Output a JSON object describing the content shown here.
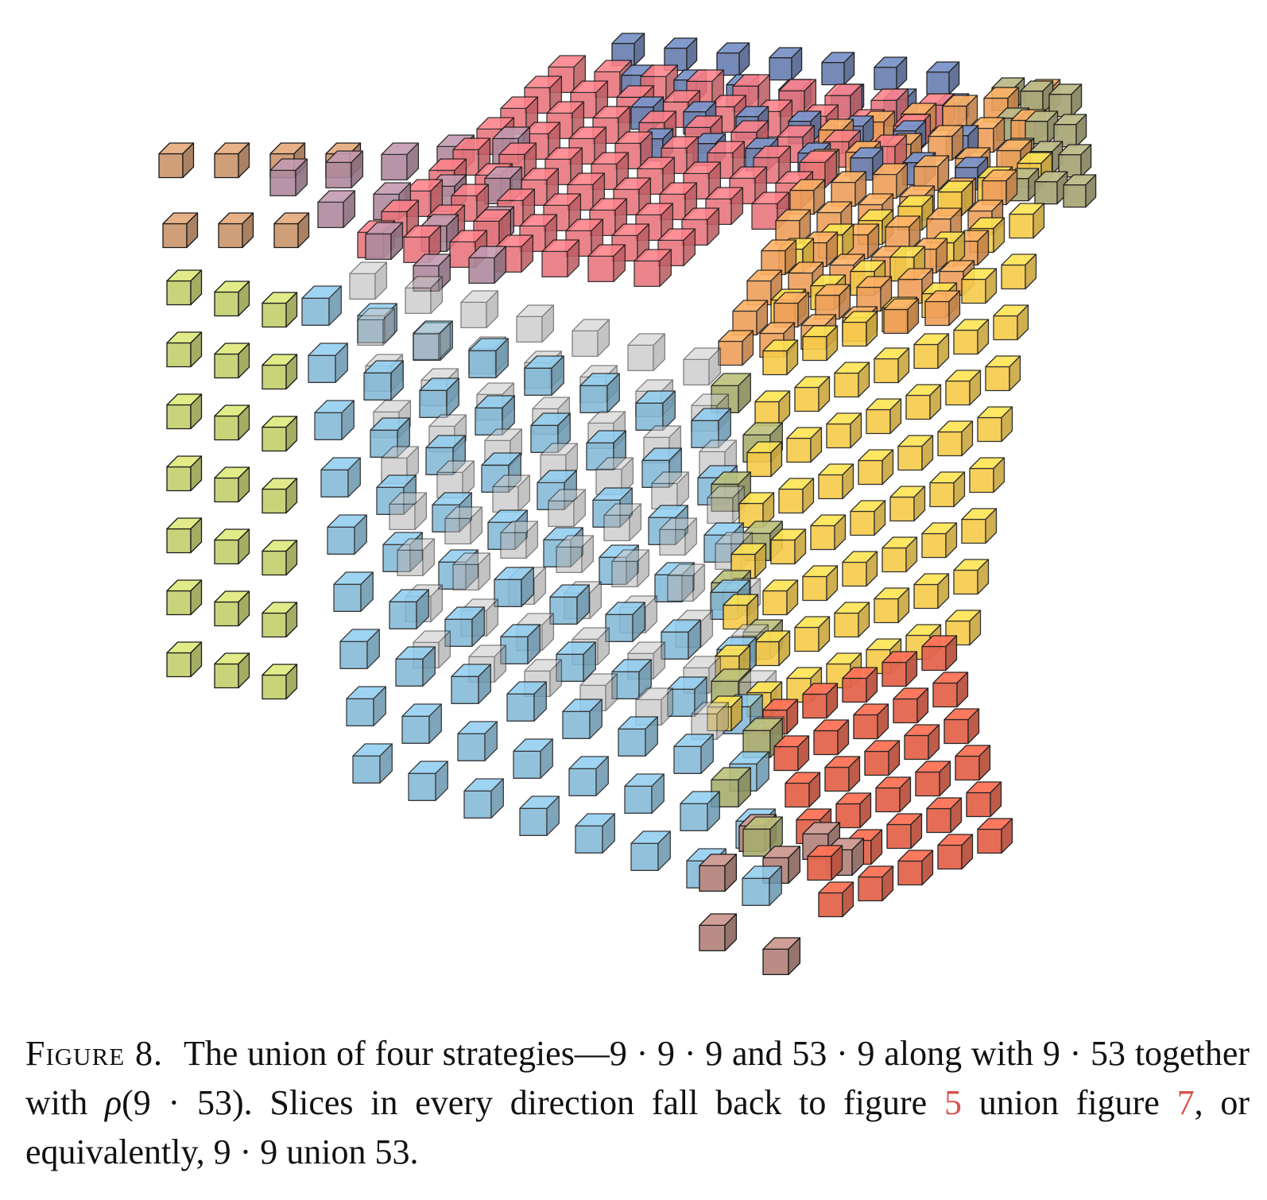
{
  "caption": {
    "label": "Figure 8.",
    "text_a": "The union of four strategies—9 · 9 · 9 and 53 · 9 along with 9 · 53 together with ",
    "rho": "ρ",
    "text_b": "(9 · 53). Slices in every direction fall back to figure ",
    "ref1": "5",
    "text_c": " union figure ",
    "ref2": "7",
    "text_d": ", or equivalently, 9 · 9 union 53."
  },
  "colors": {
    "blue_top": "#6f84b4",
    "red": "#e8737a",
    "mauve": "#b08a9e",
    "tan": "#cf9f79",
    "olive_top": "#a9a77a",
    "orange": "#ef9f5a",
    "yellow": "#f6cc4a",
    "lime": "#c9d37a",
    "sky": "#7fb7d6",
    "grey": "#b3b3b3",
    "olive_center": "#a8ad6e",
    "vermilion": "#e4664e",
    "rose_brown": "#b98d86",
    "ref_link": "#d9534f"
  }
}
